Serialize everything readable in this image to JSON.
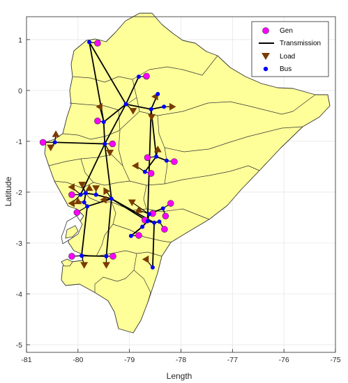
{
  "axes": {
    "xlabel": "Length",
    "ylabel": "Latitude",
    "xlim": [
      -81,
      -75
    ],
    "ylim": [
      -5.15,
      1.45
    ],
    "xticks": [
      -81,
      -80,
      -79,
      -78,
      -77,
      -76,
      -75
    ],
    "yticks": [
      -5,
      -4,
      -3,
      -2,
      -1,
      0,
      1
    ],
    "grid": true
  },
  "legend": {
    "placement": "top-right",
    "entries": [
      {
        "label": "Gen",
        "symbol": "magenta-circle"
      },
      {
        "label": "Transmission",
        "symbol": "black-line"
      },
      {
        "label": "Load",
        "symbol": "brown-down-triangle"
      },
      {
        "label": "Bus",
        "symbol": "blue-dot"
      }
    ]
  },
  "colors": {
    "land": "#ffff99",
    "border": "#333333",
    "gen": "#ff00ff",
    "bus": "#0000ff",
    "load": "#7a3b00",
    "line": "#000000",
    "grid": "#e6e6e6"
  },
  "chart_data": {
    "type": "map",
    "buses": [
      {
        "id": "B1",
        "x": -79.78,
        "y": 0.95
      },
      {
        "id": "B2",
        "x": -78.82,
        "y": 0.27
      },
      {
        "id": "B3",
        "x": -79.07,
        "y": -0.27
      },
      {
        "id": "B4",
        "x": -78.58,
        "y": -0.37
      },
      {
        "id": "B5",
        "x": -78.45,
        "y": -0.07
      },
      {
        "id": "B6",
        "x": -78.33,
        "y": -0.32
      },
      {
        "id": "B7",
        "x": -79.5,
        "y": -0.62
      },
      {
        "id": "B8",
        "x": -80.45,
        "y": -1.02
      },
      {
        "id": "B9",
        "x": -79.48,
        "y": -1.05
      },
      {
        "id": "B10",
        "x": -78.48,
        "y": -1.3
      },
      {
        "id": "B11",
        "x": -78.28,
        "y": -1.38
      },
      {
        "id": "B12",
        "x": -78.7,
        "y": -1.6
      },
      {
        "id": "B13",
        "x": -79.95,
        "y": -2.05
      },
      {
        "id": "B14",
        "x": -79.85,
        "y": -2.02
      },
      {
        "id": "B15",
        "x": -79.65,
        "y": -2.05
      },
      {
        "id": "B16",
        "x": -79.88,
        "y": -2.2
      },
      {
        "id": "B17",
        "x": -79.82,
        "y": -2.28
      },
      {
        "id": "B18",
        "x": -79.35,
        "y": -2.13
      },
      {
        "id": "B19",
        "x": -78.62,
        "y": -2.43
      },
      {
        "id": "B20",
        "x": -78.35,
        "y": -2.32
      },
      {
        "id": "B21",
        "x": -78.65,
        "y": -2.57
      },
      {
        "id": "B22",
        "x": -78.52,
        "y": -2.6
      },
      {
        "id": "B23",
        "x": -78.42,
        "y": -2.58
      },
      {
        "id": "B24",
        "x": -78.75,
        "y": -2.68
      },
      {
        "id": "B25",
        "x": -78.97,
        "y": -2.86
      },
      {
        "id": "B26",
        "x": -79.93,
        "y": -3.25
      },
      {
        "id": "B27",
        "x": -79.45,
        "y": -3.26
      },
      {
        "id": "B28",
        "x": -78.55,
        "y": -3.48
      }
    ],
    "generators": [
      {
        "id": "G1",
        "x": -79.62,
        "y": 0.93
      },
      {
        "id": "G2",
        "x": -78.67,
        "y": 0.28
      },
      {
        "id": "G3",
        "x": -79.62,
        "y": -0.6
      },
      {
        "id": "G4",
        "x": -80.68,
        "y": -1.02
      },
      {
        "id": "G5",
        "x": -79.33,
        "y": -1.05
      },
      {
        "id": "G6",
        "x": -78.65,
        "y": -1.32
      },
      {
        "id": "G7",
        "x": -78.13,
        "y": -1.4
      },
      {
        "id": "G8",
        "x": -78.58,
        "y": -1.63
      },
      {
        "id": "G9",
        "x": -80.12,
        "y": -2.05
      },
      {
        "id": "G10",
        "x": -80.02,
        "y": -2.4
      },
      {
        "id": "G11",
        "x": -78.2,
        "y": -2.22
      },
      {
        "id": "G12",
        "x": -78.55,
        "y": -2.42
      },
      {
        "id": "G13",
        "x": -78.3,
        "y": -2.47
      },
      {
        "id": "G14",
        "x": -78.7,
        "y": -2.55
      },
      {
        "id": "G15",
        "x": -78.32,
        "y": -2.73
      },
      {
        "id": "G16",
        "x": -78.82,
        "y": -2.85
      },
      {
        "id": "G17",
        "x": -80.12,
        "y": -3.26
      },
      {
        "id": "G18",
        "x": -79.32,
        "y": -3.26
      }
    ],
    "loads": [
      {
        "id": "L1",
        "x": -80.43,
        "y": -0.86,
        "dir": "up"
      },
      {
        "id": "L2",
        "x": -80.53,
        "y": -1.12,
        "dir": "down"
      },
      {
        "id": "L3",
        "x": -79.58,
        "y": -0.32,
        "dir": "left"
      },
      {
        "id": "L4",
        "x": -78.93,
        "y": -0.4,
        "dir": "down"
      },
      {
        "id": "L5",
        "x": -78.5,
        "y": -0.12,
        "dir": "left"
      },
      {
        "id": "L6",
        "x": -78.57,
        "y": -0.52,
        "dir": "down"
      },
      {
        "id": "L7",
        "x": -78.17,
        "y": -0.32,
        "dir": "right"
      },
      {
        "id": "L8",
        "x": -79.38,
        "y": -1.22,
        "dir": "down"
      },
      {
        "id": "L9",
        "x": -78.45,
        "y": -1.16,
        "dir": "up"
      },
      {
        "id": "L10",
        "x": -78.88,
        "y": -1.48,
        "dir": "left"
      },
      {
        "id": "L11",
        "x": -80.12,
        "y": -1.9,
        "dir": "left"
      },
      {
        "id": "L12",
        "x": -79.92,
        "y": -1.85,
        "dir": "down"
      },
      {
        "id": "L13",
        "x": -79.78,
        "y": -1.92,
        "dir": "up"
      },
      {
        "id": "L14",
        "x": -79.65,
        "y": -1.92,
        "dir": "down"
      },
      {
        "id": "L15",
        "x": -79.45,
        "y": -1.98,
        "dir": "right"
      },
      {
        "id": "L16",
        "x": -79.5,
        "y": -2.15,
        "dir": "left"
      },
      {
        "id": "L17",
        "x": -80.0,
        "y": -2.18,
        "dir": "up"
      },
      {
        "id": "L18",
        "x": -80.12,
        "y": -2.22,
        "dir": "left"
      },
      {
        "id": "L19",
        "x": -78.95,
        "y": -2.2,
        "dir": "down"
      },
      {
        "id": "L20",
        "x": -78.82,
        "y": -2.35,
        "dir": "up"
      },
      {
        "id": "L21",
        "x": -79.88,
        "y": -3.43,
        "dir": "down"
      },
      {
        "id": "L22",
        "x": -79.45,
        "y": -3.43,
        "dir": "down"
      },
      {
        "id": "L23",
        "x": -78.68,
        "y": -3.32,
        "dir": "left"
      }
    ],
    "transmission": [
      [
        "B1",
        "B3"
      ],
      [
        "B3",
        "B2"
      ],
      [
        "B3",
        "B4"
      ],
      [
        "B4",
        "B5"
      ],
      [
        "B4",
        "B6"
      ],
      [
        "B3",
        "B7"
      ],
      [
        "B3",
        "B9"
      ],
      [
        "B7",
        "B9"
      ],
      [
        "B8",
        "B9"
      ],
      [
        "B1",
        "B7"
      ],
      [
        "B4",
        "B10"
      ],
      [
        "B10",
        "B11"
      ],
      [
        "B10",
        "B12"
      ],
      [
        "B4",
        "B21"
      ],
      [
        "B9",
        "B13"
      ],
      [
        "B9",
        "B18"
      ],
      [
        "B13",
        "B14"
      ],
      [
        "B14",
        "B15"
      ],
      [
        "B15",
        "B18"
      ],
      [
        "B14",
        "B16"
      ],
      [
        "B16",
        "B17"
      ],
      [
        "B17",
        "B18"
      ],
      [
        "B18",
        "B21"
      ],
      [
        "B18",
        "B22"
      ],
      [
        "B21",
        "B22"
      ],
      [
        "B22",
        "B23"
      ],
      [
        "B21",
        "B19"
      ],
      [
        "B19",
        "B20"
      ],
      [
        "B21",
        "B24"
      ],
      [
        "B24",
        "B25"
      ],
      [
        "B17",
        "B26"
      ],
      [
        "B18",
        "B27"
      ],
      [
        "B26",
        "B27"
      ],
      [
        "B22",
        "B28"
      ]
    ]
  }
}
